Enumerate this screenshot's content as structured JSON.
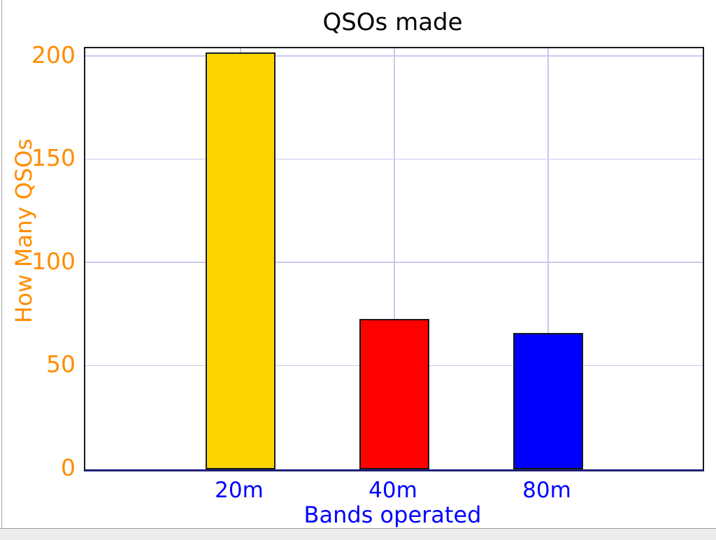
{
  "window": {
    "background": "#ffffff",
    "left_edge_line_color": "#a3a3a3",
    "bottom_strip_color": "#ededed",
    "bottom_edge_line_color": "#9b9b9b"
  },
  "chart_data": {
    "type": "bar",
    "title": "QSOs made",
    "xlabel": "Bands operated",
    "ylabel": "How Many QSOs",
    "categories": [
      "20m",
      "40m",
      "80m"
    ],
    "values": [
      202,
      73,
      66
    ],
    "bar_colors": [
      "#FFD500",
      "#FF0000",
      "#0000FF"
    ],
    "bar_edge_color": "#1a1a1a",
    "yticks": [
      0,
      50,
      100,
      150,
      200
    ],
    "ylim": [
      0,
      204
    ],
    "grid": true,
    "grid_color": "#c9c9f0",
    "legend_position": "none",
    "title_color": "#000000",
    "ylabel_color": "#FF8C00",
    "ytick_color": "#FF8C00",
    "xlabel_color": "#0000FF",
    "xtick_color": "#0000FF",
    "spine_color": "#1a1a1a",
    "baseline_color": "#1f1f78"
  }
}
